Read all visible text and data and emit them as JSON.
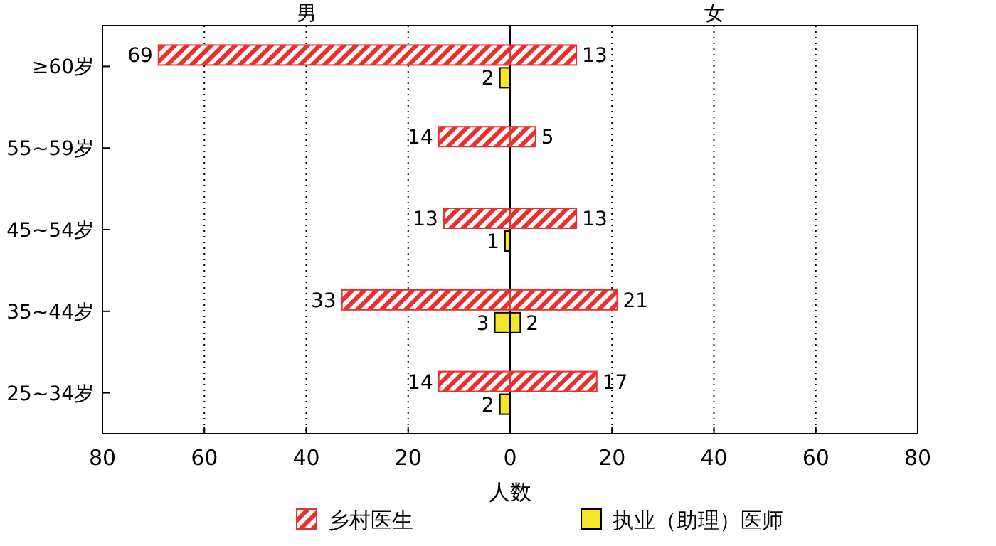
{
  "chart_data": [
    {
      "type": "bar",
      "orientation": "horizontal",
      "title": "男",
      "xlabel": "人数",
      "categories": [
        "≥60岁",
        "55~59岁",
        "45~54岁",
        "35~44岁",
        "25~34岁"
      ],
      "xlim": [
        80,
        0
      ],
      "xticks": [
        80,
        60,
        40,
        20,
        {
          "value": 0,
          "label": null
        }
      ],
      "grid": "x",
      "legend": "bottom",
      "data_labels": true,
      "series": [
        {
          "name": "乡村医生",
          "color": "#e8312f",
          "values": [
            69,
            14,
            13,
            33,
            14
          ]
        },
        {
          "name": "执业（助理）医师",
          "color": "#f5e62a",
          "values": [
            2,
            null,
            1,
            3,
            2
          ]
        }
      ]
    },
    {
      "type": "bar",
      "orientation": "horizontal",
      "title": "女",
      "xlim": [
        0,
        80
      ],
      "xticks": [
        0,
        20,
        40,
        60,
        80
      ],
      "grid": "x",
      "tick_labels": "x",
      "data_labels": true,
      "series": [
        {
          "color": "#e8312f",
          "values": [
            13,
            5,
            13,
            21,
            17
          ]
        },
        {
          "color": "#f5e62a",
          "values": [
            null,
            null,
            null,
            2,
            null
          ]
        }
      ]
    }
  ]
}
